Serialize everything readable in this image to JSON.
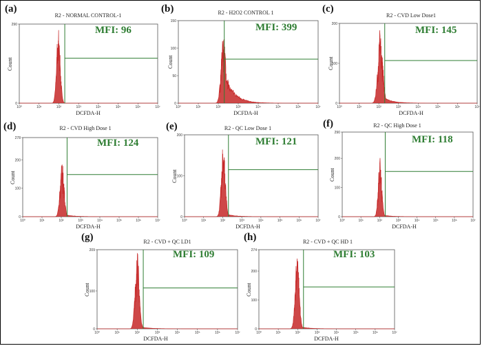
{
  "colors": {
    "gate": "#2e7d32",
    "mfi": "#2e7d32",
    "histogram": "#c62828",
    "axis": "#333333"
  },
  "chart_data": [
    {
      "type": "area",
      "label": "(a)",
      "title": "R2 - NORMAL CONTROL-1",
      "mfi": "MFI: 96",
      "xlabel": "DCFDA-H",
      "ylabel": "Count",
      "x_scale": "log",
      "xlim": [
        1,
        10000000
      ],
      "ylim": [
        0,
        290
      ],
      "y_ticks": [
        "0",
        "290"
      ],
      "x_ticks": [
        "10⁰",
        "10¹",
        "10²",
        "10³",
        "10⁴",
        "10⁵",
        "10⁶",
        "10⁷"
      ],
      "gate": {
        "x": 200,
        "y": 165
      },
      "peak": {
        "x": 96,
        "count": 290,
        "width": 0.09,
        "tail": 0.0
      }
    },
    {
      "type": "area",
      "label": "(b)",
      "title": "R2 - H2O2 CONTROL 1",
      "mfi": "MFI: 399",
      "xlabel": "DCFDA-H",
      "ylabel": "Count",
      "x_scale": "log",
      "xlim": [
        1,
        10000000
      ],
      "ylim": [
        0,
        150
      ],
      "y_ticks": [
        "0",
        "50",
        "100",
        "150"
      ],
      "x_ticks": [
        "10⁰",
        "10¹",
        "10²",
        "10³",
        "10⁴",
        "10⁵",
        "10⁶",
        "10⁷"
      ],
      "gate": {
        "x": 200,
        "y": 80
      },
      "peak": {
        "x": 180,
        "count": 128,
        "width": 0.11,
        "tail": 0.55
      }
    },
    {
      "type": "area",
      "label": "(c)",
      "title": "R2 - CVD Low Dose1",
      "mfi": "MFI: 145",
      "xlabel": "DCFDA-H",
      "ylabel": "Count",
      "x_scale": "log",
      "xlim": [
        1,
        10000000
      ],
      "ylim": [
        0,
        200
      ],
      "y_ticks": [
        "0",
        "100",
        "200"
      ],
      "x_ticks": [
        "10⁰",
        "10¹",
        "10²",
        "10³",
        "10⁴",
        "10⁵",
        "10⁶",
        "10⁷"
      ],
      "gate": {
        "x": 200,
        "y": 107
      },
      "peak": {
        "x": 120,
        "count": 185,
        "width": 0.12,
        "tail": 0.12
      }
    },
    {
      "type": "area",
      "label": "(d)",
      "title": "R2 - CVD High Dose 1",
      "mfi": "MFI: 124",
      "xlabel": "DCFDA-H",
      "ylabel": "Count",
      "x_scale": "log",
      "xlim": [
        1,
        10000000
      ],
      "ylim": [
        0,
        278
      ],
      "y_ticks": [
        "0",
        "100",
        "200",
        "278"
      ],
      "x_ticks": [
        "10⁰",
        "10¹",
        "10²",
        "10³",
        "10⁴",
        "10⁵",
        "10⁶",
        "10⁷"
      ],
      "gate": {
        "x": 200,
        "y": 148
      },
      "peak": {
        "x": 110,
        "count": 205,
        "width": 0.1,
        "tail": 0.05
      }
    },
    {
      "type": "area",
      "label": "(e)",
      "title": "R2 - QC Low Dose 1",
      "mfi": "MFI: 121",
      "xlabel": "DCFDA-H",
      "ylabel": "Count",
      "x_scale": "log",
      "xlim": [
        1,
        10000000
      ],
      "ylim": [
        0,
        200
      ],
      "y_ticks": [
        "0",
        "100",
        "200"
      ],
      "x_ticks": [
        "10⁰",
        "10¹",
        "10²",
        "10³",
        "10⁴",
        "10⁵",
        "10⁶",
        "10⁷"
      ],
      "gate": {
        "x": 200,
        "y": 115
      },
      "peak": {
        "x": 108,
        "count": 190,
        "width": 0.1,
        "tail": 0.05
      }
    },
    {
      "type": "area",
      "label": "(f)",
      "title": "R2 - QC High Dose 1",
      "mfi": "MFI: 118",
      "xlabel": "DCFDA-H",
      "ylabel": "Count",
      "x_scale": "log",
      "xlim": [
        1,
        10000000
      ],
      "ylim": [
        0,
        290
      ],
      "y_ticks": [
        "0",
        "100",
        "200",
        "290"
      ],
      "x_ticks": [
        "10⁰",
        "10¹",
        "10²",
        "10³",
        "10⁴",
        "10⁵",
        "10⁶",
        "10⁷"
      ],
      "gate": {
        "x": 200,
        "y": 155
      },
      "peak": {
        "x": 105,
        "count": 210,
        "width": 0.09,
        "tail": 0.04
      }
    },
    {
      "type": "area",
      "label": "(g)",
      "title": "R2 - CVD + QC LD1",
      "mfi": "MFI: 109",
      "xlabel": "DCFDA-H",
      "ylabel": "Count",
      "x_scale": "log",
      "xlim": [
        1,
        10000000
      ],
      "ylim": [
        0,
        209
      ],
      "y_ticks": [
        "0",
        "100",
        "209"
      ],
      "x_ticks": [
        "10⁰",
        "10¹",
        "10²",
        "10³",
        "10⁴",
        "10⁵",
        "10⁶",
        "10⁷"
      ],
      "gate": {
        "x": 200,
        "y": 108
      },
      "peak": {
        "x": 100,
        "count": 205,
        "width": 0.1,
        "tail": 0.04
      }
    },
    {
      "type": "area",
      "label": "(h)",
      "title": "R2 - CVD + QC HD 1",
      "mfi": "MFI: 103",
      "xlabel": "DCFDA-H",
      "ylabel": "Count",
      "x_scale": "log",
      "xlim": [
        1,
        10000000
      ],
      "ylim": [
        0,
        274
      ],
      "y_ticks": [
        "0",
        "100",
        "200",
        "274"
      ],
      "x_ticks": [
        "10⁰",
        "10¹",
        "10²",
        "10³",
        "10⁴",
        "10⁵",
        "10⁶",
        "10⁷"
      ],
      "gate": {
        "x": 200,
        "y": 145
      },
      "peak": {
        "x": 95,
        "count": 270,
        "width": 0.1,
        "tail": 0.04
      }
    }
  ]
}
